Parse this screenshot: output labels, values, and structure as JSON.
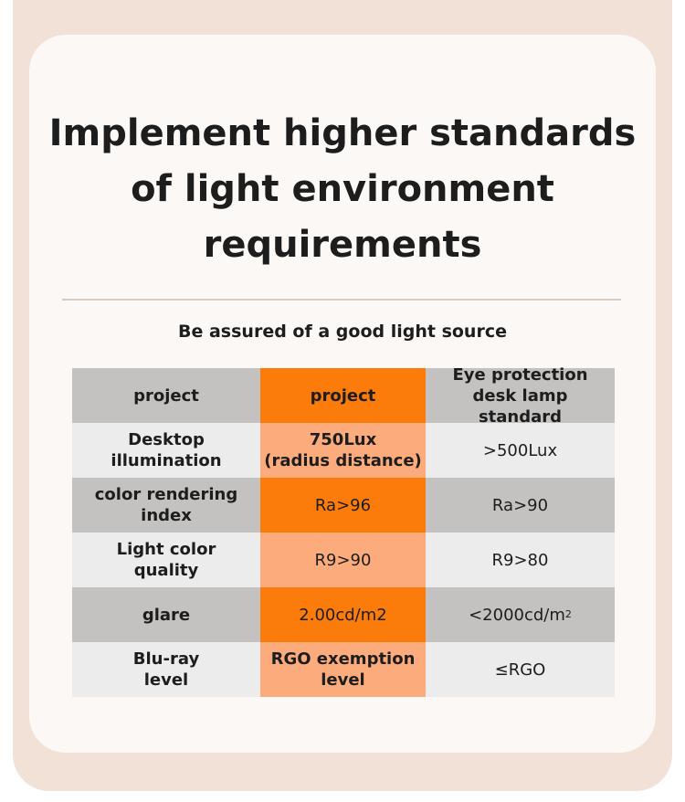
{
  "title": {
    "line1": "Implement higher standards",
    "line2": "of light environment",
    "line3": "requirements"
  },
  "subtitle": "Be assured of a good light source",
  "table": {
    "header": {
      "col1": "project",
      "col2": "project",
      "col3_line1": "Eye protection",
      "col3_line2": "desk lamp standard"
    },
    "rows": [
      {
        "item_line1": "Desktop",
        "item_line2": "illumination",
        "ours_line1": "750Lux",
        "ours_line2": "(radius distance)",
        "standard": ">500Lux"
      },
      {
        "item_line1": "color rendering",
        "item_line2": "index",
        "ours": "Ra>96",
        "standard": "Ra>90"
      },
      {
        "item_line1": "Light color",
        "item_line2": "quality",
        "ours": "R9>90",
        "standard": "R9>80"
      },
      {
        "item": "glare",
        "ours": "2.00cd/m2",
        "standard": "<2000cd/m",
        "standard_sup": "2"
      },
      {
        "item_line1": "Blu-ray",
        "item_line2": "level",
        "ours_line1": "RGO exemption",
        "ours_line2": "level",
        "standard": "≤RGO"
      }
    ]
  },
  "colors": {
    "outer_bg": "#f2e1d7",
    "card_bg": "#fcf8f5",
    "header_gray": "#c3c2c1",
    "row_light": "#ececec",
    "accent_orange": "#fb7c0a",
    "accent_peach": "#fcac7c"
  }
}
